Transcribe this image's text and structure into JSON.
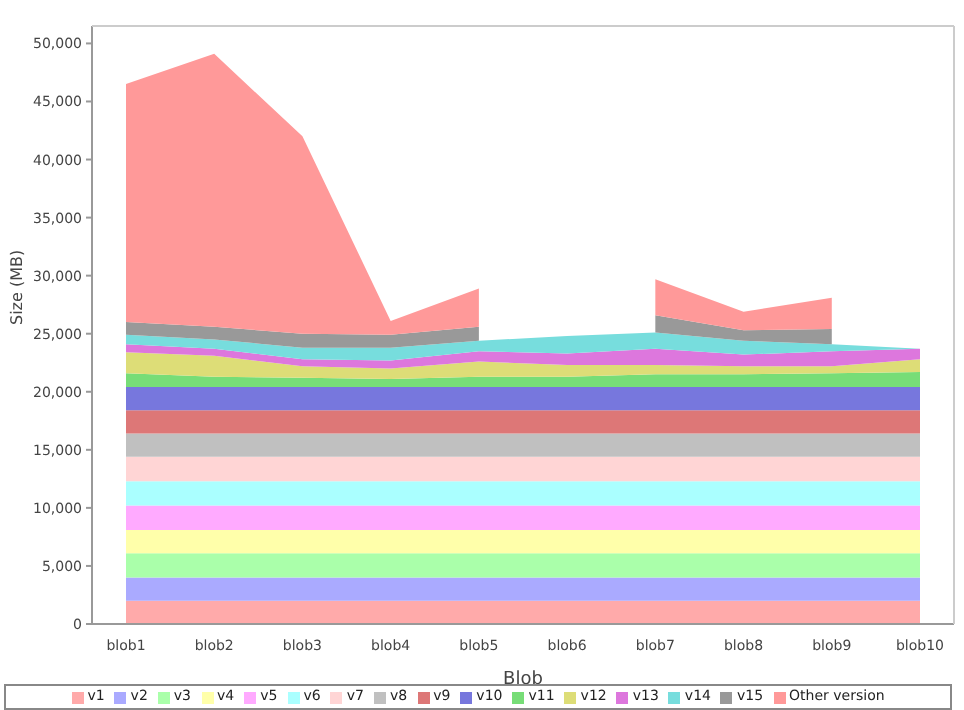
{
  "chart_data": {
    "type": "area",
    "stacked": true,
    "xlabel": "Blob",
    "ylabel": "Size (MB)",
    "categories": [
      "blob1",
      "blob2",
      "blob3",
      "blob4",
      "blob5",
      "blob6",
      "blob7",
      "blob8",
      "blob9",
      "blob10"
    ],
    "ylim": [
      0,
      51500
    ],
    "yticks": [
      0,
      {
        "value": 5000,
        "label": "5,000"
      },
      {
        "value": 10000,
        "label": "10,000"
      },
      {
        "value": 15000,
        "label": "15,000"
      },
      {
        "value": 20000,
        "label": "20,000"
      },
      {
        "value": 25000,
        "label": "25,000"
      },
      {
        "value": 30000,
        "label": "30,000"
      },
      {
        "value": 35000,
        "label": "35,000"
      },
      {
        "value": 40000,
        "label": "40,000"
      },
      {
        "value": 45000,
        "label": "45,000"
      },
      {
        "value": 50000,
        "label": "50,000"
      }
    ],
    "grid": false,
    "legend": "bottom",
    "series": [
      {
        "name": "v1",
        "color": "#ffaaaa",
        "values": [
          2000,
          2000,
          2000,
          2000,
          2000,
          2000,
          2000,
          2000,
          2000,
          2000
        ]
      },
      {
        "name": "v2",
        "color": "#aaaaff",
        "values": [
          2000,
          2000,
          2000,
          2000,
          2000,
          2000,
          2000,
          2000,
          2000,
          2000
        ]
      },
      {
        "name": "v3",
        "color": "#aaffaa",
        "values": [
          2100,
          2100,
          2100,
          2100,
          2100,
          2100,
          2100,
          2100,
          2100,
          2100
        ]
      },
      {
        "name": "v4",
        "color": "#ffffaa",
        "values": [
          2000,
          2000,
          2000,
          2000,
          2000,
          2000,
          2000,
          2000,
          2000,
          2000
        ]
      },
      {
        "name": "v5",
        "color": "#ffaaff",
        "values": [
          2100,
          2100,
          2100,
          2100,
          2100,
          2100,
          2100,
          2100,
          2100,
          2100
        ]
      },
      {
        "name": "v6",
        "color": "#aaffff",
        "values": [
          2100,
          2100,
          2100,
          2100,
          2100,
          2100,
          2100,
          2100,
          2100,
          2100
        ]
      },
      {
        "name": "v7",
        "color": "#ffd5d5",
        "values": [
          2100,
          2100,
          2100,
          2100,
          2100,
          2100,
          2100,
          2100,
          2100,
          2100
        ]
      },
      {
        "name": "v8",
        "color": "#c0c0c0",
        "values": [
          2000,
          2000,
          2000,
          2000,
          2000,
          2000,
          2000,
          2000,
          2000,
          2000
        ]
      },
      {
        "name": "v9",
        "color": "#dd7777",
        "values": [
          2000,
          2000,
          2000,
          2000,
          2000,
          2000,
          2000,
          2000,
          2000,
          2000
        ]
      },
      {
        "name": "v10",
        "color": "#7777dd",
        "values": [
          2000,
          2000,
          2000,
          2000,
          2000,
          2000,
          2000,
          2000,
          2000,
          2000
        ]
      },
      {
        "name": "v11",
        "color": "#77dd77",
        "values": [
          1200,
          900,
          800,
          700,
          900,
          900,
          1100,
          1100,
          1200,
          1300
        ]
      },
      {
        "name": "v12",
        "color": "#dddd77",
        "values": [
          1800,
          1800,
          1000,
          900,
          1300,
          1000,
          800,
          700,
          600,
          1100
        ]
      },
      {
        "name": "v13",
        "color": "#dd77dd",
        "values": [
          700,
          600,
          600,
          700,
          900,
          1000,
          1400,
          1000,
          1300,
          900
        ]
      },
      {
        "name": "v14",
        "color": "#77dddd",
        "values": [
          800,
          800,
          1000,
          1100,
          900,
          1500,
          1400,
          1200,
          600,
          0
        ]
      },
      {
        "name": "v15",
        "color": "#999999",
        "values": [
          1100,
          1100,
          1200,
          1100,
          1200,
          null,
          1500,
          900,
          1300,
          null
        ]
      },
      {
        "name": "Other version",
        "color": "#ff9999",
        "values": [
          20500,
          23500,
          17000,
          1200,
          3300,
          null,
          3100,
          1600,
          2700,
          null
        ]
      }
    ]
  }
}
